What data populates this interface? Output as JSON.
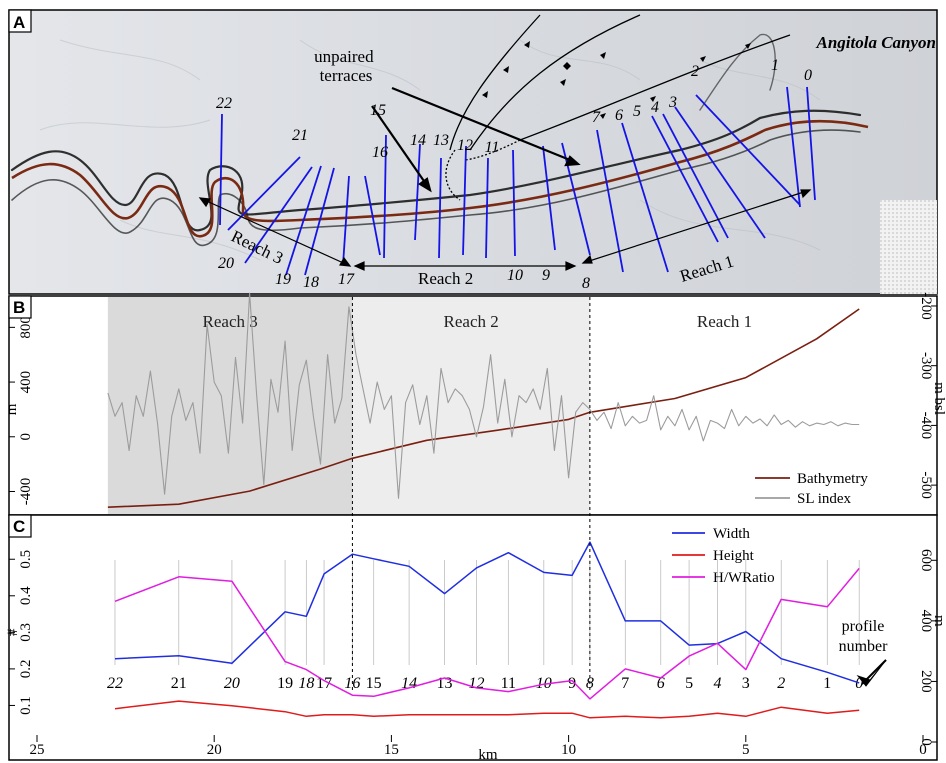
{
  "panel_a": {
    "letter": "A",
    "title": "Angitola Canyon",
    "annotation": "unpaired\nterraces",
    "profile_labels": [
      "22",
      "21",
      "20",
      "19",
      "18",
      "17",
      "16",
      "15",
      "14",
      "13",
      "12",
      "11",
      "10",
      "9",
      "8",
      "7",
      "6",
      "5",
      "4",
      "3",
      "2",
      "1",
      "0"
    ],
    "reach_labels": [
      "Reach 3",
      "Reach 2",
      "Reach 1"
    ],
    "colors": {
      "profile_lines": "#1414e6",
      "thalweg": "#7a2a12"
    }
  },
  "chart_data": [
    {
      "panel": "B",
      "type": "line",
      "x_axis": {
        "reversed": true,
        "range": [
          25,
          0
        ]
      },
      "y_left": {
        "label": "m",
        "ticks": [
          -400,
          0,
          400,
          800
        ],
        "range": [
          -550,
          1000
        ]
      },
      "y_right": {
        "label": "m bsl",
        "ticks": [
          -200,
          -300,
          -400,
          -500
        ]
      },
      "shaded_regions": [
        {
          "name": "Reach 3",
          "x_from": 23.0,
          "x_to": 16.1,
          "color": "#dadada"
        },
        {
          "name": "Reach 2",
          "x_from": 16.1,
          "x_to": 9.4,
          "color": "#ededed"
        },
        {
          "name": "Reach 1",
          "x_from": 9.4,
          "x_to": 1.8,
          "color": "#ffffff"
        }
      ],
      "boundaries_km": [
        16.1,
        9.4
      ],
      "series": [
        {
          "name": "Bathymetry",
          "axis": "right",
          "color": "#7a1f10",
          "x": [
            23.0,
            21.0,
            19.0,
            17.0,
            16.1,
            14.0,
            12.0,
            10.0,
            9.4,
            7.0,
            5.0,
            3.0,
            1.8
          ],
          "y": [
            -537,
            -532,
            -510,
            -473,
            -455,
            -425,
            -408,
            -390,
            -378,
            -355,
            -320,
            -255,
            -205
          ]
        },
        {
          "name": "SL index",
          "axis": "left",
          "color": "#9c9c9c",
          "x": [
            23.0,
            22.8,
            22.6,
            22.4,
            22.2,
            22.0,
            21.8,
            21.6,
            21.4,
            21.2,
            21.0,
            20.8,
            20.6,
            20.4,
            20.2,
            20.0,
            19.8,
            19.6,
            19.4,
            19.2,
            19.0,
            18.8,
            18.6,
            18.4,
            18.2,
            18.0,
            17.8,
            17.6,
            17.4,
            17.2,
            17.0,
            16.8,
            16.6,
            16.4,
            16.2,
            16.0,
            15.8,
            15.6,
            15.4,
            15.2,
            15.0,
            14.8,
            14.6,
            14.4,
            14.2,
            14.0,
            13.8,
            13.6,
            13.4,
            13.2,
            13.0,
            12.8,
            12.6,
            12.4,
            12.2,
            12.0,
            11.8,
            11.6,
            11.4,
            11.2,
            11.0,
            10.8,
            10.6,
            10.4,
            10.2,
            10.0,
            9.8,
            9.6,
            9.4,
            9.2,
            9.0,
            8.8,
            8.6,
            8.4,
            8.2,
            8.0,
            7.8,
            7.6,
            7.4,
            7.2,
            7.0,
            6.8,
            6.6,
            6.4,
            6.2,
            6.0,
            5.8,
            5.6,
            5.4,
            5.2,
            5.0,
            4.8,
            4.6,
            4.4,
            4.2,
            4.0,
            3.8,
            3.6,
            3.4,
            3.2,
            3.0,
            2.8,
            2.6,
            2.4,
            2.2,
            2.0,
            1.8
          ],
          "y": [
            320,
            150,
            250,
            -100,
            300,
            150,
            480,
            100,
            -420,
            150,
            350,
            120,
            250,
            -120,
            820,
            400,
            300,
            -120,
            580,
            100,
            1050,
            300,
            -350,
            420,
            180,
            700,
            -100,
            380,
            560,
            150,
            -200,
            600,
            100,
            280,
            950,
            600,
            350,
            100,
            400,
            200,
            300,
            -450,
            250,
            380,
            90,
            300,
            -120,
            500,
            250,
            350,
            300,
            200,
            0,
            220,
            600,
            100,
            420,
            0,
            300,
            250,
            350,
            200,
            500,
            -100,
            300,
            -300,
            180,
            250,
            200,
            120,
            180,
            60,
            250,
            80,
            150,
            100,
            120,
            300,
            50,
            150,
            80,
            200,
            50,
            150,
            -30,
            120,
            100,
            60,
            200,
            80,
            150,
            100,
            130,
            80,
            160,
            90,
            120,
            70,
            110,
            80,
            100,
            90,
            110,
            80,
            100,
            90,
            90
          ]
        }
      ],
      "legend": {
        "placement": "bottom-right",
        "entries": [
          "Bathymetry",
          "SL index"
        ]
      }
    },
    {
      "panel": "C",
      "type": "line",
      "x_axis": {
        "label": "km",
        "reversed": true,
        "range": [
          25,
          0
        ],
        "ticks": [
          25,
          20,
          15,
          10,
          5,
          0
        ]
      },
      "y_left": {
        "label": "#",
        "ticks": [
          0.1,
          0.2,
          0.3,
          0.4,
          0.5
        ],
        "range": [
          0,
          0.58
        ]
      },
      "y_right": {
        "label": "m",
        "ticks": [
          0,
          200,
          400,
          600
        ],
        "range": [
          0,
          700
        ]
      },
      "boundaries_km": [
        16.1,
        9.4
      ],
      "profile_km": [
        22.8,
        21.0,
        19.5,
        18.0,
        17.4,
        16.9,
        16.1,
        15.5,
        14.5,
        13.5,
        12.6,
        11.7,
        10.7,
        9.9,
        9.4,
        8.4,
        7.4,
        6.6,
        5.8,
        5.0,
        4.0,
        2.7,
        1.8
      ],
      "profile_labels": [
        "22",
        "21",
        "20",
        "19",
        "18",
        "17",
        "16",
        "15",
        "14",
        "13",
        "12",
        "11",
        "10",
        "9",
        "8",
        "7",
        "6",
        "5",
        "4",
        "3",
        "2",
        "1",
        "0"
      ],
      "series": [
        {
          "name": "Width",
          "axis": "right",
          "color": "#1f2ee0",
          "y": [
            275,
            285,
            260,
            430,
            415,
            555,
            620,
            605,
            580,
            490,
            575,
            625,
            560,
            550,
            660,
            400,
            400,
            320,
            325,
            365,
            275,
            230,
            195
          ]
        },
        {
          "name": "Height",
          "axis": "right",
          "color": "#e01b1b",
          "y": [
            110,
            135,
            120,
            100,
            85,
            90,
            90,
            85,
            90,
            90,
            90,
            90,
            95,
            95,
            80,
            85,
            80,
            85,
            95,
            85,
            115,
            95,
            105
          ]
        },
        {
          "name": "H/WRatio",
          "axis": "left",
          "color": "#e01ee0",
          "y": [
            0.385,
            0.452,
            0.44,
            0.22,
            0.198,
            0.168,
            0.128,
            0.125,
            0.148,
            0.175,
            0.148,
            0.138,
            0.158,
            0.168,
            0.118,
            0.2,
            0.175,
            0.235,
            0.27,
            0.198,
            0.39,
            0.37,
            0.475
          ]
        }
      ],
      "legend": {
        "placement": "top-right",
        "entries": [
          "Width",
          "Height",
          "H/WRatio"
        ]
      },
      "annotation": "profile\nnumber"
    }
  ]
}
